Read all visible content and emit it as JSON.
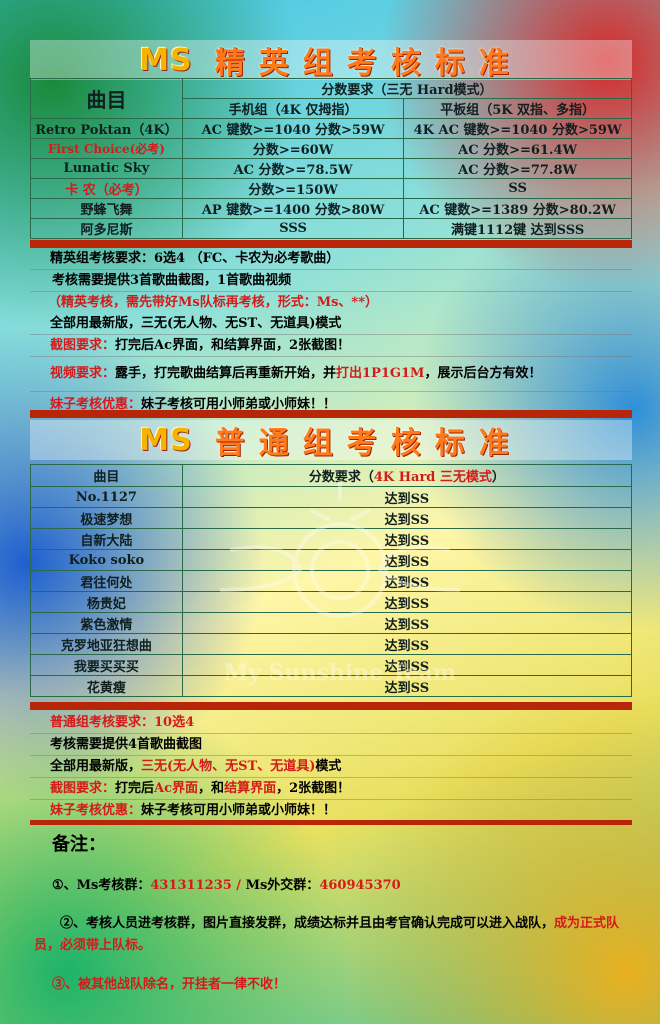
{
  "elite": {
    "title_logo": "MS",
    "title": "精英组考核标准",
    "header_song": "曲目",
    "header_score": "分数要求（三无 Hard模式）",
    "header_phone": "手机组（4K 仅拇指）",
    "header_tablet": "平板组（5K 双指、多指）",
    "rows": [
      {
        "song": "Retro Poktan（4K）",
        "phone": "AC 键数>=1040 分数>59W",
        "tablet": "4K AC 键数>=1040 分数>59W"
      },
      {
        "song": "First Choice(必考)",
        "phone": "分数>=60W",
        "tablet": "AC 分数>=61.4W"
      },
      {
        "song": "Lunatic Sky",
        "phone": "AC 分数>=78.5W",
        "tablet": "AC 分数>=77.8W"
      },
      {
        "song": "卡 农（必考）",
        "phone": "分数>=150W",
        "tablet": "SS"
      },
      {
        "song": "野蜂飞舞",
        "phone": "AP 键数>=1400 分数>80W",
        "tablet": "AC 键数>=1389 分数>80.2W"
      },
      {
        "song": "阿多尼斯",
        "phone": "SSS",
        "tablet": "满键1112键 达到SSS"
      }
    ],
    "req": {
      "r1_label": "精英组考核要求：",
      "r1_text": "6选4 （FC、卡农为必考歌曲）",
      "r2": "考核需要提供3首歌曲截图，1首歌曲视频",
      "r3": "（精英考核，需先带好Ms队标再考核，形式：Ms、**）",
      "r4": "全部用最新版，三无(无人物、无ST、无道具)模式",
      "r5_label": "截图要求：",
      "r5_text": "打完后Ac界面，和结算界面，2张截图！",
      "r6_label": "视频要求：",
      "r6_a": "露手，打完歌曲结算后再重新开始，并",
      "r6_b": "打出1P1G1M",
      "r6_c": "，展示后台方有效！",
      "r7_label": "妹子考核优惠：",
      "r7_text": "妹子考核可用小师弟或小师妹！！"
    }
  },
  "normal": {
    "title_logo": "MS",
    "title": "普通组考核标准",
    "header_song": "曲目",
    "header_score_a": "分数要求（",
    "header_score_b": "4K Hard 三无模式",
    "header_score_c": "）",
    "rows": [
      {
        "song": "No.1127",
        "score": "达到SS"
      },
      {
        "song": "极速梦想",
        "score": "达到SS"
      },
      {
        "song": "自新大陆",
        "score": "达到SS"
      },
      {
        "song": "Koko soko",
        "score": "达到SS"
      },
      {
        "song": "君往何处",
        "score": "达到SS"
      },
      {
        "song": "杨贵妃",
        "score": "达到SS"
      },
      {
        "song": "紫色激情",
        "score": "达到SS"
      },
      {
        "song": "克罗地亚狂想曲",
        "score": "达到SS"
      },
      {
        "song": "我要买买买",
        "score": "达到SS"
      },
      {
        "song": "花黄瘦",
        "score": "达到SS"
      }
    ],
    "req": {
      "r1_label": "普通组考核要求：",
      "r1_text": "10选4",
      "r2": "考核需要提供4首歌曲截图",
      "r3_a": "全部用最新版，",
      "r3_b": "三无(无人物、无ST、无道具)",
      "r3_c": "模式",
      "r4_label": "截图要求：",
      "r4_a": "打完后",
      "r4_b": "Ac界面",
      "r4_c": "，和",
      "r4_d": "结算界面",
      "r4_e": "，2张截图！",
      "r5_label": "妹子考核优惠：",
      "r5_text": "妹子考核可用小师弟或小师妹！！"
    }
  },
  "notes": {
    "heading": "备注：",
    "n1_a": "①、Ms考核群：",
    "n1_b": "431311235 / ",
    "n1_c": "Ms外交群：",
    "n1_d": "460945370",
    "n2_a": "②、考核人员进考核群，图片直接发群，成绩达标并且由考官确认完成可以进入战队，",
    "n2_b": "成为正式队员，必须带上队标。",
    "n3": "③、被其他战队除名，开挂者一律不收！"
  },
  "watermark_text": "My Sunshine Team",
  "colors": {
    "accent_red": "#d41a1a",
    "divider": "#b8260a",
    "title_orange": "#ff7a1a"
  }
}
